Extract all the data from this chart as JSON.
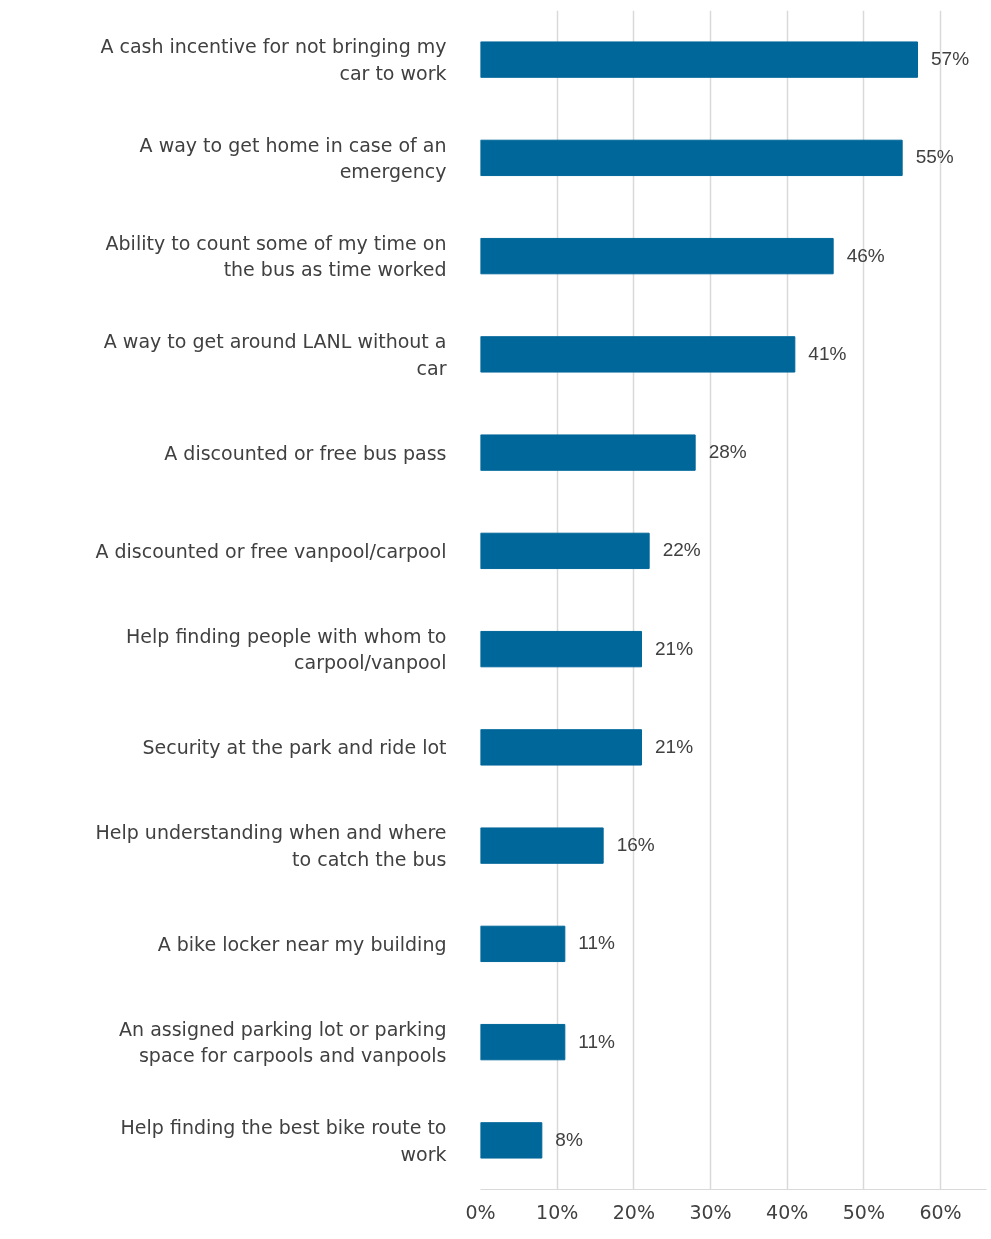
{
  "chart_data": {
    "type": "bar",
    "orientation": "horizontal",
    "categories": [
      "A cash incentive for not bringing my\ncar to work",
      "A way to get home in case of an\nemergency",
      "Ability to count some of my time on\nthe bus as time worked",
      "A way to get around LANL without a\ncar",
      "A discounted or free bus pass",
      "A discounted or free vanpool/carpool",
      "Help finding people with whom to\ncarpool/vanpool",
      "Security at the park and ride lot",
      "Help understanding when and where\nto catch the bus",
      "A bike locker near my building",
      "An assigned parking lot or parking\nspace for carpools and vanpools",
      "Help finding the best bike route to\nwork"
    ],
    "values": [
      57,
      55,
      46,
      41,
      28,
      22,
      21,
      21,
      16,
      11,
      11,
      8
    ],
    "value_labels": [
      "57%",
      "55%",
      "46%",
      "41%",
      "28%",
      "22%",
      "21%",
      "21%",
      "16%",
      "11%",
      "11%",
      "8%"
    ],
    "color": "#00679a",
    "xlim": [
      0,
      66
    ],
    "xticks": [
      {
        "value": 0,
        "label": "0%"
      },
      {
        "value": 10,
        "label": "10%"
      },
      {
        "value": 20,
        "label": "20%"
      },
      {
        "value": 30,
        "label": "30%"
      },
      {
        "value": 40,
        "label": "40%"
      },
      {
        "value": 50,
        "label": "50%"
      },
      {
        "value": 60,
        "label": "60%"
      }
    ],
    "grid": "x"
  }
}
